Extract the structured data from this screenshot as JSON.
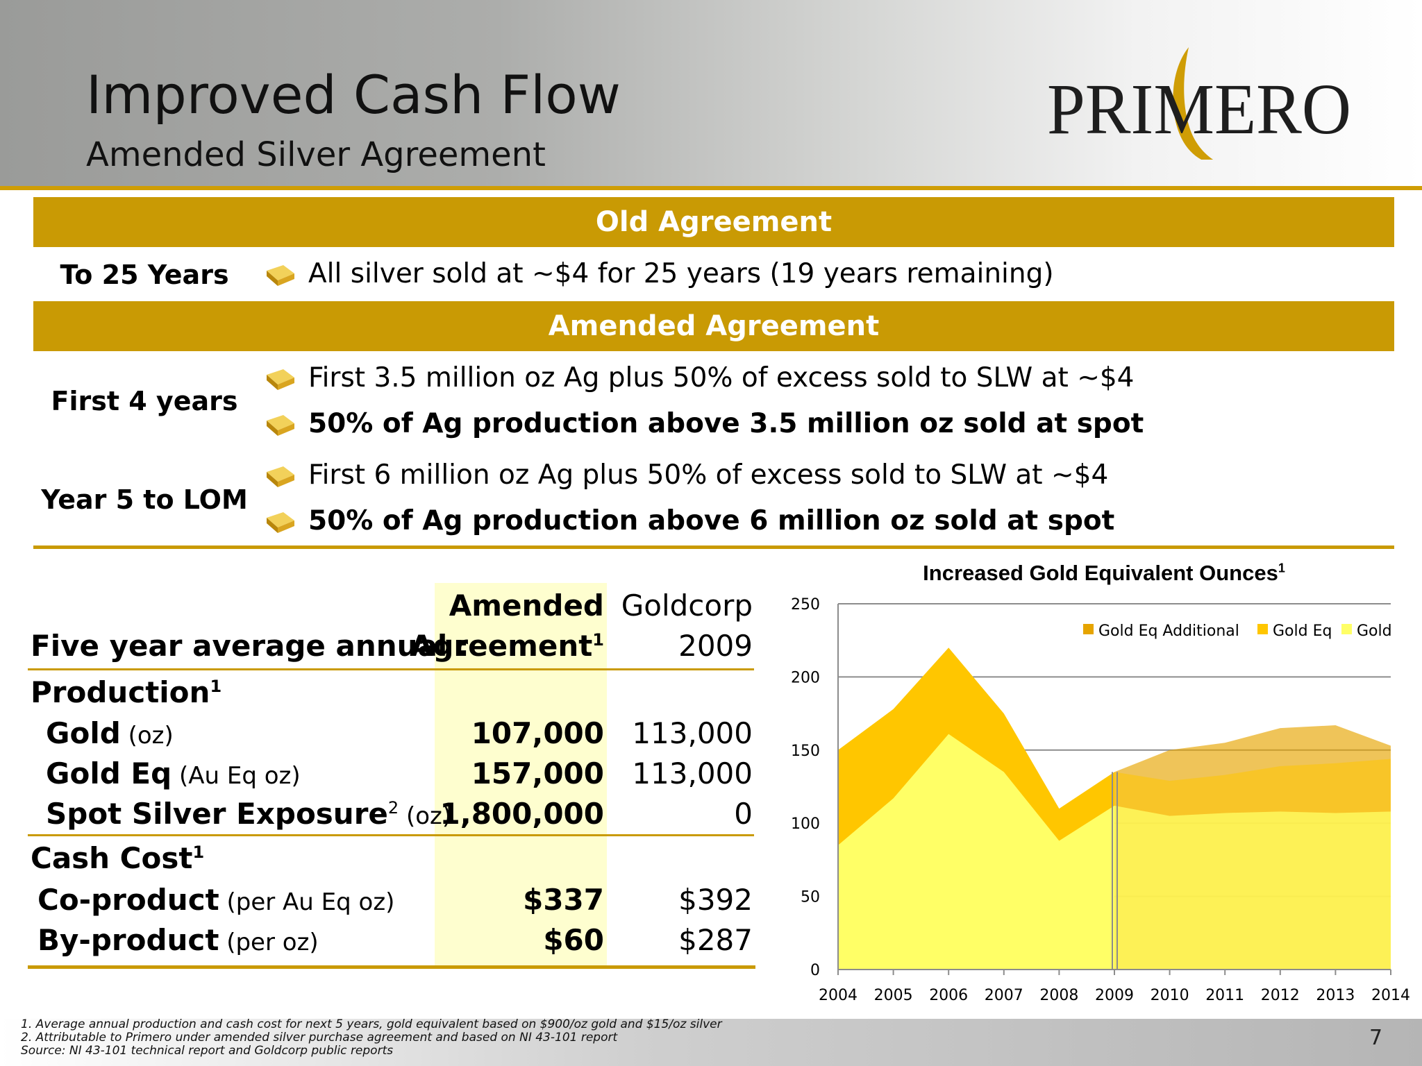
{
  "header": {
    "title": "Improved Cash Flow",
    "subtitle": "Amended Silver Agreement",
    "logo_text": "PRIMERO"
  },
  "agreements": {
    "old_header": "Old Agreement",
    "old_label": "To 25 Years",
    "old_bullet": "All silver sold at ~$4 for 25 years (19 years remaining)",
    "amended_header": "Amended Agreement",
    "first4_label": "First 4 years",
    "first4_bullet1": "First 3.5 million oz Ag  plus 50% of excess sold to SLW at ~$4",
    "first4_bullet2": "50% of Ag production above 3.5 million oz sold at spot",
    "year5_label": "Year 5 to LOM",
    "year5_bullet1": "First 6 million oz Ag plus 50% of excess sold to SLW at ~$4",
    "year5_bullet2": "50% of Ag production above 6 million oz sold at spot"
  },
  "table": {
    "row_header": "Five year average annual :",
    "col1_line1": "Amended",
    "col1_line2": "Agreement",
    "col1_sup": "1",
    "col2_line1": "Goldcorp",
    "col2_line2": "2009",
    "production_label": "Production",
    "production_sup": "1",
    "rows": [
      {
        "label": "Gold",
        "unit": " (oz)",
        "amended": "107,000",
        "goldcorp": "113,000"
      },
      {
        "label": "Gold Eq",
        "unit": " (Au Eq oz)",
        "amended": "157,000",
        "goldcorp": "113,000"
      },
      {
        "label": "Spot Silver Exposure",
        "sup": "2",
        "unit": " (oz)",
        "amended": "1,800,000",
        "goldcorp": "0"
      }
    ],
    "cashcost_label": "Cash Cost",
    "cashcost_sup": "1",
    "cost_rows": [
      {
        "label": "Co-product",
        "unit": " (per Au Eq oz)",
        "amended": "$337",
        "goldcorp": "$392"
      },
      {
        "label": "By-product",
        "unit": " (per oz)",
        "amended": "$60",
        "goldcorp": "$287"
      }
    ]
  },
  "chart_data": {
    "type": "area",
    "title": "Increased Gold Equivalent Ounces",
    "title_sup": "1",
    "x": [
      2004,
      2005,
      2006,
      2007,
      2008,
      2009,
      2010,
      2011,
      2012,
      2013,
      2014
    ],
    "ylim": [
      0,
      250
    ],
    "yticks": [
      0,
      50,
      100,
      150,
      200,
      250
    ],
    "grid": true,
    "legend_position": "top-right",
    "projection_starts_at": 2009,
    "series": [
      {
        "name": "Gold",
        "color": "#ffff66",
        "values": [
          85,
          117,
          161,
          135,
          88,
          112,
          105,
          107,
          108,
          107,
          108
        ]
      },
      {
        "name": "Gold Eq",
        "color": "#ffc600",
        "values": [
          150,
          178,
          220,
          175,
          110,
          135,
          129,
          133,
          139,
          141,
          144
        ]
      },
      {
        "name": "Gold Eq Additional",
        "color": "#e6a400",
        "values": [
          null,
          null,
          null,
          null,
          null,
          135,
          150,
          155,
          165,
          167,
          153
        ]
      }
    ]
  },
  "footnotes": {
    "n1": "1.    Average annual production and cash cost for next 5 years, gold equivalent based on $900/oz gold and $15/oz silver",
    "n2": "2.    Attributable to Primero under amended silver purchase agreement and based on NI 43-101 report",
    "source": "Source: NI 43-101 technical report and Goldcorp public reports"
  },
  "page_number": "7"
}
